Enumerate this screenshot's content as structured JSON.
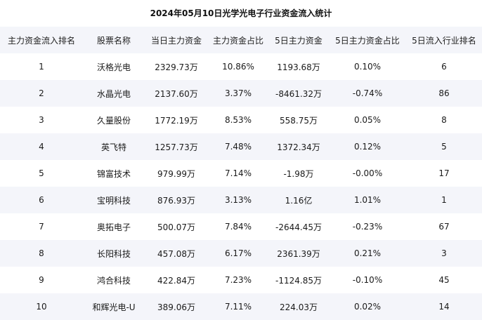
{
  "title": "2024年05月10日光学光电子行业资金流入统计",
  "columns": [
    "主力资金流入排名",
    "股票名称",
    "当日主力资金",
    "主力资金占比",
    "5日主力资金",
    "5日主力资金占比",
    "5日流入行业排名"
  ],
  "rows": [
    [
      "1",
      "沃格光电",
      "2329.73万",
      "10.86%",
      "1193.68万",
      "0.10%",
      "6"
    ],
    [
      "2",
      "水晶光电",
      "2137.60万",
      "3.37%",
      "-8461.32万",
      "-0.74%",
      "86"
    ],
    [
      "3",
      "久量股份",
      "1772.19万",
      "8.53%",
      "558.75万",
      "0.05%",
      "8"
    ],
    [
      "4",
      "英飞特",
      "1257.73万",
      "7.48%",
      "1372.34万",
      "0.12%",
      "5"
    ],
    [
      "5",
      "锦富技术",
      "979.99万",
      "7.14%",
      "-1.98万",
      "-0.00%",
      "17"
    ],
    [
      "6",
      "宝明科技",
      "876.93万",
      "3.13%",
      "1.16亿",
      "1.01%",
      "1"
    ],
    [
      "7",
      "奥拓电子",
      "500.07万",
      "7.84%",
      "-2644.45万",
      "-0.23%",
      "67"
    ],
    [
      "8",
      "长阳科技",
      "457.08万",
      "6.17%",
      "2361.39万",
      "0.21%",
      "3"
    ],
    [
      "9",
      "鸿合科技",
      "422.84万",
      "7.23%",
      "-1124.85万",
      "-0.10%",
      "45"
    ],
    [
      "10",
      "和辉光电-U",
      "389.06万",
      "7.11%",
      "224.03万",
      "0.02%",
      "14"
    ]
  ]
}
